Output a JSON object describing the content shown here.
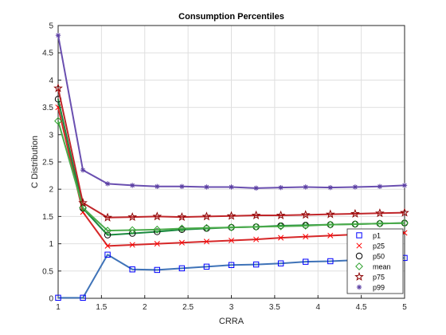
{
  "chart_data": {
    "type": "line",
    "title": "Consumption Percentiles",
    "xlabel": "CRRA",
    "ylabel": "C Distribution",
    "xlim": [
      1,
      5
    ],
    "ylim": [
      0,
      5
    ],
    "grid": true,
    "legend_position": "bottom-right",
    "x": [
      1,
      1.286,
      1.571,
      1.857,
      2.143,
      2.429,
      2.714,
      3,
      3.286,
      3.571,
      3.857,
      4.143,
      4.429,
      4.714,
      5
    ],
    "xticks": [
      "1",
      "1.5",
      "2",
      "2.5",
      "3",
      "3.5",
      "4",
      "4.5",
      "5"
    ],
    "yticks": [
      "0",
      "0.5",
      "1",
      "1.5",
      "2",
      "2.5",
      "3",
      "3.5",
      "4",
      "4.5",
      "5"
    ],
    "series": [
      {
        "name": "p1",
        "color": "#0000ff",
        "line_color": "#3f73b8",
        "marker": "square",
        "values": [
          0.01,
          0.01,
          0.8,
          0.53,
          0.52,
          0.55,
          0.58,
          0.61,
          0.62,
          0.64,
          0.67,
          0.68,
          0.7,
          0.72,
          0.74
        ]
      },
      {
        "name": "p25",
        "color": "#ff0000",
        "line_color": "#d62728",
        "marker": "x",
        "values": [
          3.5,
          1.58,
          0.96,
          0.98,
          1.0,
          1.02,
          1.04,
          1.06,
          1.08,
          1.11,
          1.13,
          1.15,
          1.17,
          1.19,
          1.2
        ]
      },
      {
        "name": "p50",
        "color": "#000000",
        "line_color": "#1a8a3f",
        "marker": "circle",
        "values": [
          3.65,
          1.65,
          1.16,
          1.19,
          1.22,
          1.26,
          1.28,
          1.3,
          1.31,
          1.33,
          1.34,
          1.35,
          1.36,
          1.37,
          1.38
        ]
      },
      {
        "name": "mean",
        "color": "#2ca02c",
        "line_color": "#4bab4b",
        "marker": "diamond",
        "values": [
          3.25,
          1.66,
          1.24,
          1.25,
          1.26,
          1.28,
          1.29,
          1.3,
          1.31,
          1.32,
          1.33,
          1.35,
          1.36,
          1.37,
          1.38
        ]
      },
      {
        "name": "p75",
        "color": "#8b0000",
        "line_color": "#c0262a",
        "marker": "star",
        "values": [
          3.85,
          1.75,
          1.48,
          1.49,
          1.5,
          1.49,
          1.5,
          1.51,
          1.52,
          1.52,
          1.53,
          1.54,
          1.55,
          1.56,
          1.57
        ]
      },
      {
        "name": "p99",
        "color": "#5b3fa3",
        "line_color": "#6a4fb0",
        "marker": "asterisk",
        "values": [
          4.82,
          2.35,
          2.1,
          2.07,
          2.05,
          2.05,
          2.04,
          2.04,
          2.02,
          2.03,
          2.04,
          2.03,
          2.04,
          2.05,
          2.07
        ]
      }
    ]
  }
}
